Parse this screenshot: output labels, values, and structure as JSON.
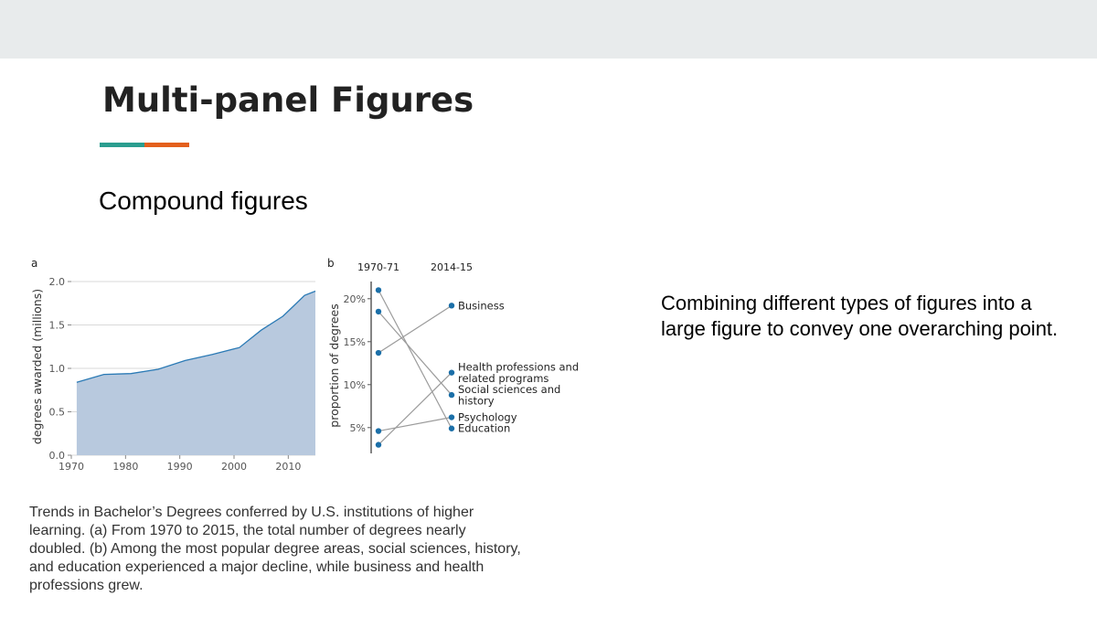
{
  "slide": {
    "title": "Multi-panel Figures",
    "subtitle": "Compound figures",
    "body_text": "Combining different types of figures into a large figure to convey one overarching point.",
    "caption": "Trends in Bachelor’s Degrees conferred by U.S. institutions of higher learning. (a) From 1970 to 2015, the total number of degrees nearly doubled. (b) Among the most popular degree areas, social sciences, history, and education experienced a major decline, while business and health professions grew."
  },
  "colors": {
    "top_band": "#e8ebec",
    "accent_teal": "#2a9d8f",
    "accent_orange": "#e35f1c",
    "area_fill": "#b8c9de",
    "area_line": "#2b7ab5",
    "dot": "#1b6fa8",
    "slope_line": "#9b9b9b",
    "grid": "#d9d9d9"
  },
  "chart_data": [
    {
      "panel": "a",
      "type": "area",
      "ylabel": "degrees awarded (millions)",
      "xlabel": "",
      "xlim": [
        1970,
        2015
      ],
      "ylim": [
        0,
        2.0
      ],
      "xticks": [
        "1970",
        "1980",
        "1990",
        "2000",
        "2010"
      ],
      "yticks": [
        "0.0",
        "0.5",
        "1.0",
        "1.5",
        "2.0"
      ],
      "grid": true,
      "x": [
        1971,
        1976,
        1981,
        1986,
        1991,
        1996,
        2001,
        2005,
        2009,
        2011,
        2013,
        2015
      ],
      "y": [
        0.84,
        0.93,
        0.94,
        0.99,
        1.09,
        1.16,
        1.24,
        1.44,
        1.6,
        1.72,
        1.84,
        1.89
      ]
    },
    {
      "panel": "b",
      "type": "slope",
      "ylabel": "proportion of degrees",
      "ylim": [
        2,
        22
      ],
      "yticks": [
        "5%",
        "10%",
        "15%",
        "20%"
      ],
      "categories": [
        "1970-71",
        "2014-15"
      ],
      "series": [
        {
          "name": "Business",
          "values": [
            13.7,
            19.2
          ]
        },
        {
          "name": "Health professions and related programs",
          "values": [
            3.0,
            11.4
          ]
        },
        {
          "name": "Social sciences and history",
          "values": [
            18.5,
            8.8
          ]
        },
        {
          "name": "Psychology",
          "values": [
            4.6,
            6.2
          ]
        },
        {
          "name": "Education",
          "values": [
            21.0,
            4.9
          ]
        }
      ]
    }
  ]
}
